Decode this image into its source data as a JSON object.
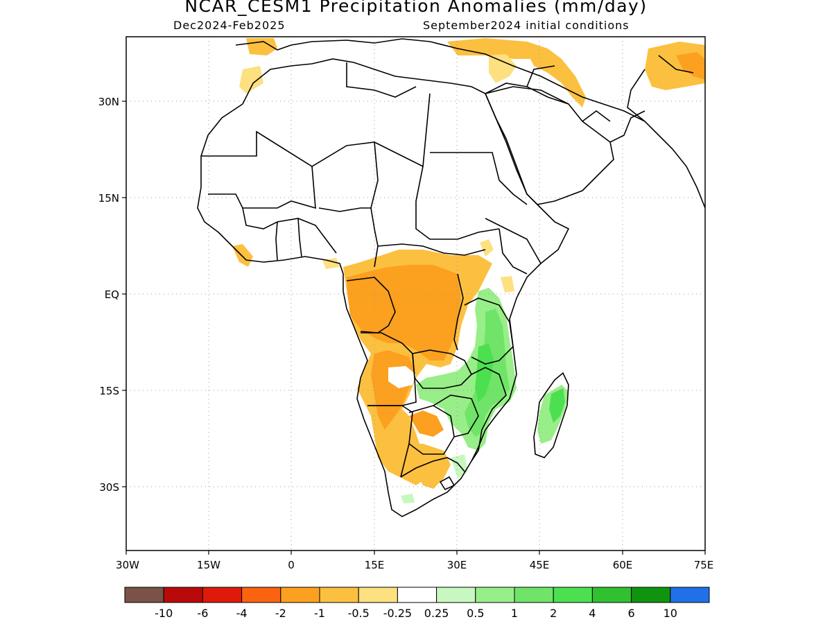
{
  "header": {
    "title": "NCAR_CESM1 Precipitation Anomalies (mm/day)",
    "season": "Dec2024-Feb2025",
    "init": "September2024 initial conditions"
  },
  "map": {
    "lat_ticks": [
      "30N",
      "15N",
      "EQ",
      "15S",
      "30S"
    ],
    "lon_ticks": [
      "30W",
      "15W",
      "0",
      "15E",
      "30E",
      "45E",
      "60E",
      "75E"
    ]
  },
  "legend": {
    "colors": [
      "#7a5248",
      "#b80a0a",
      "#e01a0a",
      "#fa6410",
      "#fca020",
      "#fcc040",
      "#fde080",
      "#ffffff",
      "#c8f8c0",
      "#98ee88",
      "#70e468",
      "#4ce050",
      "#30c030",
      "#109410",
      "#2070e8"
    ],
    "labels": [
      "-10",
      "-6",
      "-4",
      "-2",
      "-1",
      "-0.5",
      "-0.25",
      "0.25",
      "0.5",
      "1",
      "2",
      "4",
      "6",
      "10"
    ]
  }
}
